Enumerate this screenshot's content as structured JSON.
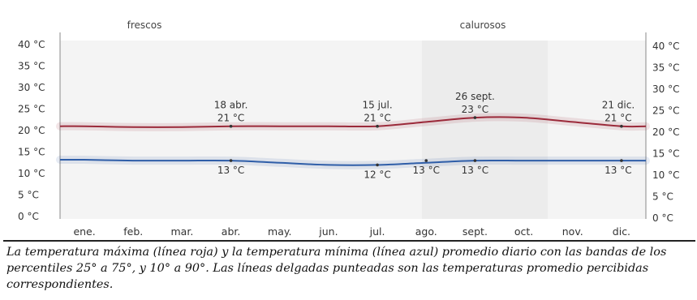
{
  "chart_data": {
    "type": "line",
    "categories": [
      "ene.",
      "feb.",
      "mar.",
      "abr.",
      "may.",
      "jun.",
      "jul.",
      "ago.",
      "sept.",
      "oct.",
      "nov.",
      "dic."
    ],
    "y_tick_labels": [
      "0 °C",
      "5 °C",
      "10 °C",
      "15 °C",
      "20 °C",
      "25 °C",
      "30 °C",
      "35 °C",
      "40 °C"
    ],
    "y_ticks": [
      0,
      5,
      10,
      15,
      20,
      25,
      30,
      35,
      40
    ],
    "ylim": [
      0,
      40
    ],
    "grid": false,
    "axes": "left-and-right",
    "series": [
      {
        "color": "#9b2a3a",
        "values": [
          21,
          20.8,
          20.8,
          21,
          21,
          21,
          21,
          22,
          23,
          23,
          22,
          21
        ]
      },
      {
        "color": "#2f5ea8",
        "values": [
          13.2,
          13,
          13,
          13,
          12.5,
          12,
          12,
          12.5,
          13,
          13,
          13,
          13
        ]
      }
    ],
    "bands": [
      {
        "label": "frescos"
      },
      {
        "label": "calurosos"
      }
    ],
    "annotations": [
      {
        "x": "abr.",
        "y": 21,
        "date": "18 abr.",
        "value": "21 °C"
      },
      {
        "x": "jul.",
        "y": 21,
        "date": "15 jul.",
        "value": "21 °C"
      },
      {
        "x": "sept.",
        "y": 23,
        "date": "26 sept.",
        "value": "23 °C"
      },
      {
        "x": "dic.",
        "y": 21,
        "date": "21 dic.",
        "value": "21 °C"
      },
      {
        "x": "abr.",
        "y": 13,
        "date": "",
        "value": "13 °C"
      },
      {
        "x": "jul.",
        "y": 12,
        "date": "",
        "value": "12 °C"
      },
      {
        "x": "ago.",
        "y": 13,
        "date": "",
        "value": "13 °C"
      },
      {
        "x": "sept.",
        "y": 13,
        "date": "",
        "value": "13 °C"
      },
      {
        "x": "dic.",
        "y": 13,
        "date": "",
        "value": "13 °C"
      }
    ]
  },
  "caption": "La temperatura máxima (línea roja) y la temperatura mínima (línea azul) promedio diario con las bandas de los percentiles 25° a 75°, y 10° a 90°. Las líneas delgadas punteadas son las temperaturas promedio percibidas correspondientes."
}
